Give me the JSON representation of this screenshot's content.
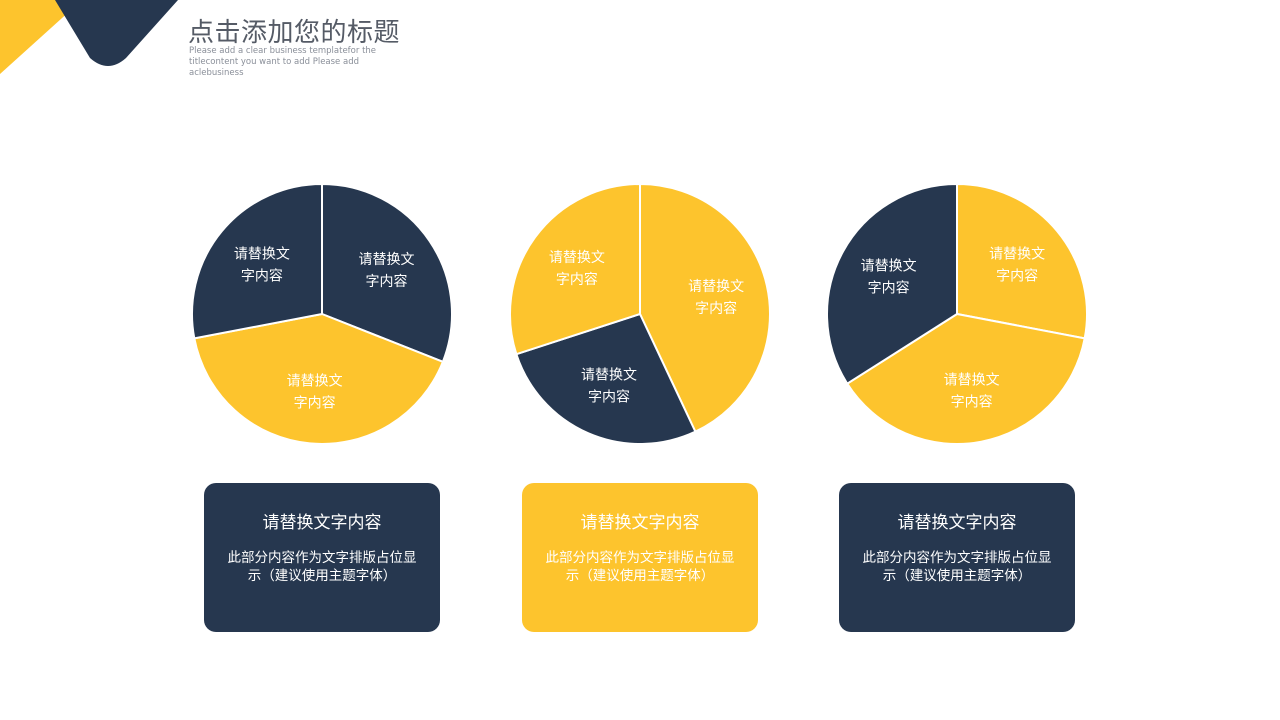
{
  "colors": {
    "navy": "#26374f",
    "yellow": "#fdc42d"
  },
  "header": {
    "title": "点击添加您的标题",
    "subtitle": "Please add a clear business templatefor  the titlecontent  you want to add  Please add aclebusiness"
  },
  "chart_data": [
    {
      "type": "pie",
      "slices": [
        {
          "label": "请替换文\n字内容",
          "value": 31,
          "color": "#26374f"
        },
        {
          "label": "请替换文\n字内容",
          "value": 41,
          "color": "#fdc42d"
        },
        {
          "label": "请替换文\n字内容",
          "value": 28,
          "color": "#26374f"
        }
      ]
    },
    {
      "type": "pie",
      "slices": [
        {
          "label": "请替换文\n字内容",
          "value": 43,
          "color": "#fdc42d"
        },
        {
          "label": "请替换文\n字内容",
          "value": 27,
          "color": "#26374f"
        },
        {
          "label": "请替换文\n字内容",
          "value": 30,
          "color": "#fdc42d"
        }
      ]
    },
    {
      "type": "pie",
      "slices": [
        {
          "label": "请替换文\n字内容",
          "value": 28,
          "color": "#fdc42d"
        },
        {
          "label": "请替换文\n字内容",
          "value": 38,
          "color": "#fdc42d"
        },
        {
          "label": "请替换文\n字内容",
          "value": 34,
          "color": "#26374f"
        }
      ]
    }
  ],
  "cards": [
    {
      "heading": "请替换文字内容",
      "body": "此部分内容作为文字排版占位显示（建议使用主题字体）",
      "color": "#26374f"
    },
    {
      "heading": "请替换文字内容",
      "body": "此部分内容作为文字排版占位显示（建议使用主题字体）",
      "color": "#fdc42d"
    },
    {
      "heading": "请替换文字内容",
      "body": "此部分内容作为文字排版占位显示（建议使用主题字体）",
      "color": "#26374f"
    }
  ]
}
